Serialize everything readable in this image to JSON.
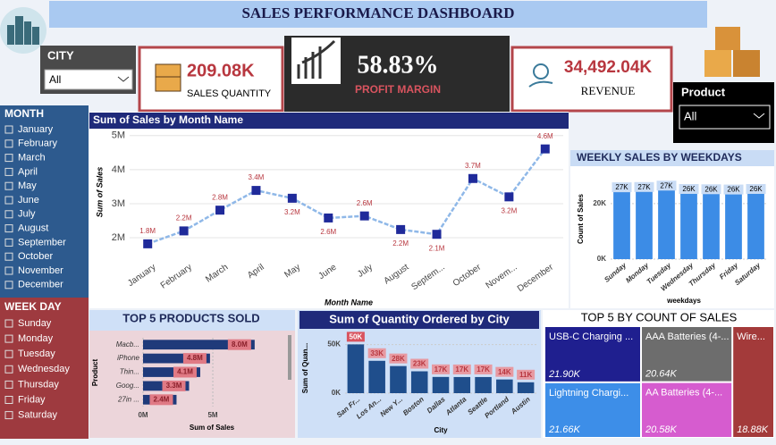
{
  "header": {
    "title": "SALES PERFORMANCE DASHBOARD"
  },
  "city_slicer": {
    "label": "CITY",
    "selection": "All"
  },
  "product_slicer": {
    "label": "Product",
    "selection": "All"
  },
  "kpis": [
    {
      "value": "209.08K",
      "label": "SALES QUANTITY"
    },
    {
      "value": "58.83%",
      "label": "PROFIT MARGIN"
    },
    {
      "value": "34,492.04K",
      "label": "REVENUE"
    }
  ],
  "month_slicer": {
    "title": "MONTH",
    "items": [
      "January",
      "February",
      "March",
      "April",
      "May",
      "June",
      "July",
      "August",
      "September",
      "October",
      "November",
      "December"
    ]
  },
  "weekday_slicer": {
    "title": "WEEK DAY",
    "items": [
      "Sunday",
      "Monday",
      "Tuesday",
      "Wednesday",
      "Thursday",
      "Friday",
      "Saturday"
    ]
  },
  "chart_data": [
    {
      "type": "line",
      "title": "Sum of Sales by Month Name",
      "x_label": "Month Name",
      "y_label": "Sum of Sales",
      "categories": [
        "January",
        "February",
        "March",
        "April",
        "May",
        "June",
        "July",
        "August",
        "Septem...",
        "October",
        "Novem...",
        "December"
      ],
      "values": [
        1.82,
        2.2,
        2.81,
        3.39,
        3.16,
        2.58,
        2.64,
        2.24,
        2.1,
        3.74,
        3.2,
        4.61
      ],
      "value_labels": [
        "1.8M",
        "2.2M",
        "2.8M",
        "3.4M",
        "3.2M",
        "2.6M",
        "2.6M",
        "2.2M",
        "2.1M",
        "3.7M",
        "3.2M",
        "4.6M"
      ],
      "color": "#1f2a9a",
      "line_color": "#8fb8e8",
      "label_color": "#b8373f",
      "ylim": [
        1.37,
        5.1
      ],
      "yticks": [
        {
          "value": 2,
          "label": "2M"
        },
        {
          "value": 3,
          "label": "3M"
        },
        {
          "value": 4,
          "label": "4M"
        },
        {
          "value": 5,
          "label": "5M"
        }
      ],
      "grid": true
    },
    {
      "type": "bar",
      "title": "WEEKLY SALES BY WEEKDAYS",
      "x_label": "weekdays",
      "y_label": "Count of Sales",
      "categories": [
        "Sunday",
        "Monday",
        "Tuesday",
        "Wednesday",
        "Thursday",
        "Friday",
        "Saturday"
      ],
      "values": [
        26700,
        26800,
        27300,
        26100,
        26000,
        25900,
        26100
      ],
      "value_labels": [
        "27K",
        "27K",
        "27K",
        "26K",
        "26K",
        "26K",
        "26K"
      ],
      "color": "#3c8ce6",
      "ylim": [
        0,
        30600
      ],
      "yticks": [
        {
          "value": 0,
          "label": "0K"
        },
        {
          "value": 20000,
          "label": "20K"
        }
      ],
      "grid": true
    },
    {
      "type": "hbar",
      "title": "TOP 5 PRODUCTS SOLD",
      "x_label": "Sum of Sales",
      "y_label": "Product",
      "categories": [
        "Macb...",
        "iPhone",
        "Thin...",
        "Goog...",
        "27in ..."
      ],
      "values": [
        8.0,
        4.8,
        4.1,
        3.3,
        2.4
      ],
      "value_labels": [
        "8.0M",
        "4.8M",
        "4.1M",
        "3.3M",
        "2.4M"
      ],
      "color": "#1f3a7a",
      "label_color": "#e07a85",
      "xlim": [
        0,
        8.65
      ],
      "xticks": [
        {
          "value": 0,
          "label": "0M"
        },
        {
          "value": 5,
          "label": "5M"
        }
      ],
      "grid": true
    },
    {
      "type": "bar",
      "title": "Sum of Quantity Ordered by City",
      "x_label": "City",
      "y_label": "Sum of Quan...",
      "categories": [
        "San Fr...",
        "Los An...",
        "New Y...",
        "Boston",
        "Dallas",
        "Atlanta",
        "Seattle",
        "Portland",
        "Austin"
      ],
      "values": [
        50200,
        33300,
        27900,
        22500,
        16700,
        16600,
        16600,
        14100,
        11200
      ],
      "value_labels": [
        "50K",
        "33K",
        "28K",
        "23K",
        "17K",
        "17K",
        "17K",
        "14K",
        "11K"
      ],
      "color": "#1f4e8c",
      "label_color": "#d9545f",
      "ylim": [
        0,
        57000
      ],
      "yticks": [
        {
          "value": 0,
          "label": "0K"
        },
        {
          "value": 50000,
          "label": "50K"
        }
      ],
      "grid": true
    },
    {
      "type": "treemap",
      "title": "TOP 5 BY COUNT OF SALES",
      "categories": [
        "USB-C Charging ...",
        "Lightning Chargi...",
        "AAA Batteries (4-...",
        "AA Batteries (4-...",
        "Wire..."
      ],
      "values": [
        21900,
        21660,
        20640,
        20580,
        18880
      ],
      "value_labels": [
        "21.90K",
        "21.66K",
        "20.64K",
        "20.58K",
        "18.88K"
      ],
      "colors": [
        "#1f1f8f",
        "#3d8ee8",
        "#6d6d6d",
        "#d65ccf",
        "#a33a3a"
      ]
    }
  ]
}
